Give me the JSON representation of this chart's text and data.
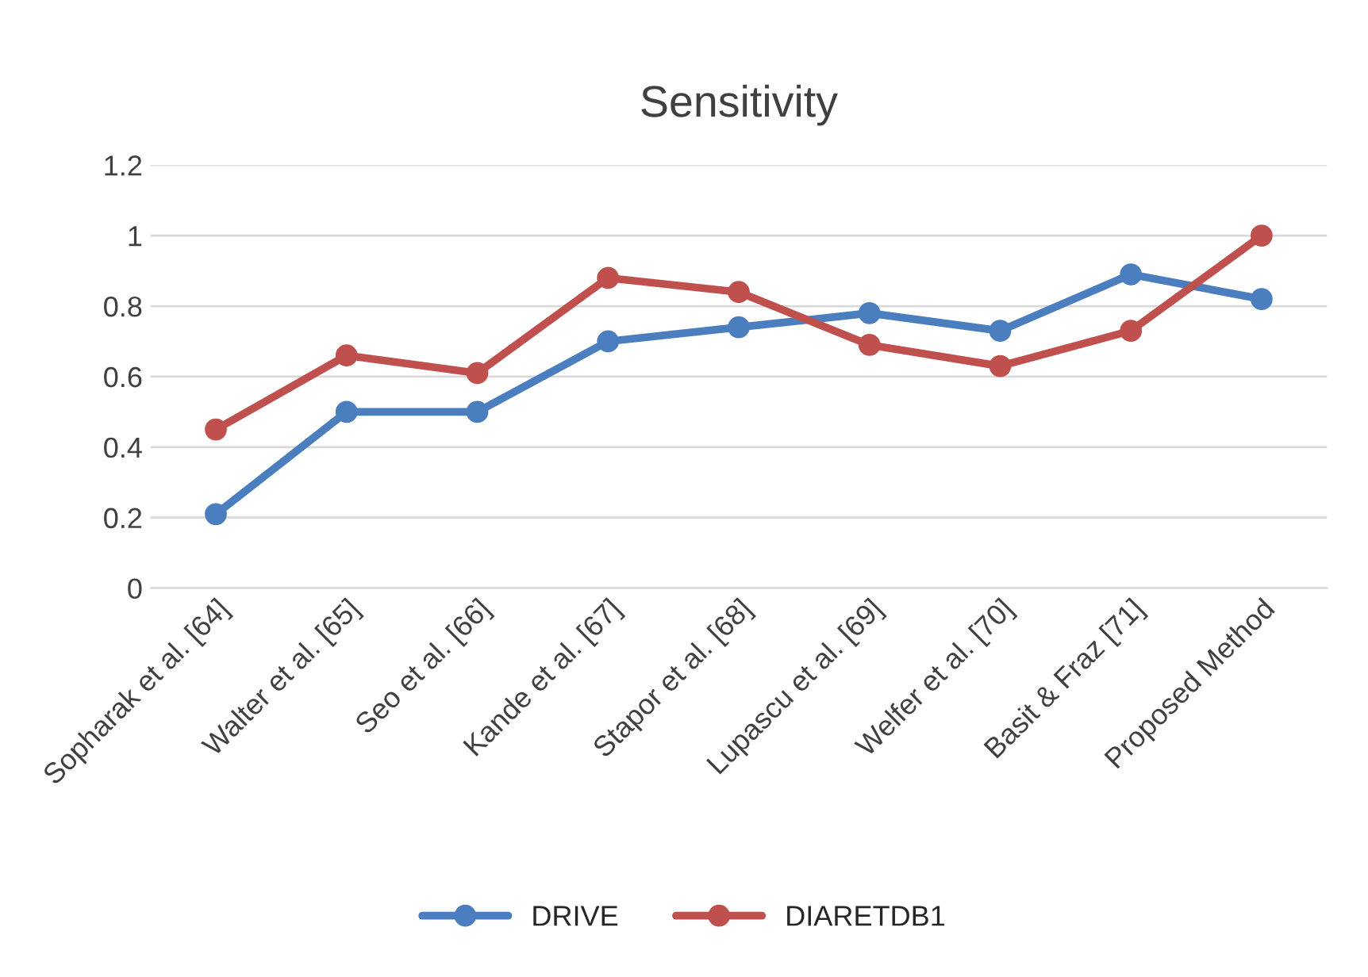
{
  "chart_data": {
    "type": "line",
    "title": "Sensitivity",
    "categories": [
      "Sopharak et al. [64]",
      "Walter et al. [65]",
      "Seo et al. [66]",
      "Kande et al. [67]",
      "Stapor et al. [68]",
      "Lupascu et al. [69]",
      "Welfer et al. [70]",
      "Basit & Fraz [71]",
      "Proposed Method"
    ],
    "series": [
      {
        "name": "DRIVE",
        "color": "#4a7ebf",
        "values": [
          0.21,
          0.5,
          0.5,
          0.7,
          0.74,
          0.78,
          0.73,
          0.89,
          0.82
        ]
      },
      {
        "name": "DIARETDB1",
        "color": "#c0504d",
        "values": [
          0.45,
          0.66,
          0.61,
          0.88,
          0.84,
          0.69,
          0.63,
          0.73,
          1.0
        ]
      }
    ],
    "ylim": [
      0,
      1.2
    ],
    "yticks": [
      0,
      0.2,
      0.4,
      0.6,
      0.8,
      1,
      1.2
    ],
    "grid": "y",
    "legend": "bottom",
    "marker": "circle",
    "line_style": "solid"
  }
}
